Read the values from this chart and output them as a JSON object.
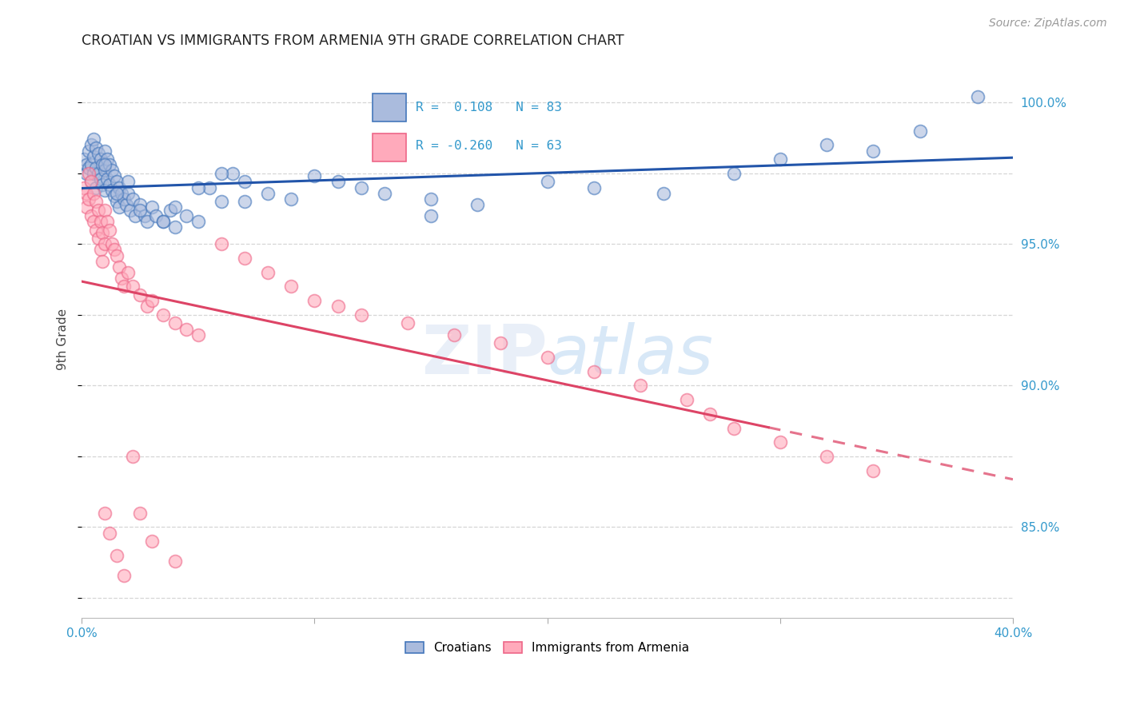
{
  "title": "CROATIAN VS IMMIGRANTS FROM ARMENIA 9TH GRADE CORRELATION CHART",
  "source": "Source: ZipAtlas.com",
  "ylabel": "9th Grade",
  "yticks": [
    "85.0%",
    "90.0%",
    "95.0%",
    "100.0%"
  ],
  "ytick_values": [
    0.85,
    0.9,
    0.95,
    1.0
  ],
  "xlim": [
    0.0,
    0.4
  ],
  "ylim": [
    0.818,
    1.015
  ],
  "blue_color": "#aabbdd",
  "pink_color": "#ffaabb",
  "blue_edge_color": "#4477bb",
  "pink_edge_color": "#ee6688",
  "blue_line_color": "#2255aa",
  "pink_line_color": "#dd4466",
  "watermark": "ZIPatlas",
  "legend_r1": "R =  0.108   N = 83",
  "legend_r2": "R = -0.260   N = 63",
  "blue_x": [
    0.001,
    0.002,
    0.002,
    0.003,
    0.003,
    0.004,
    0.004,
    0.004,
    0.005,
    0.005,
    0.005,
    0.006,
    0.006,
    0.006,
    0.007,
    0.007,
    0.008,
    0.008,
    0.009,
    0.009,
    0.01,
    0.01,
    0.01,
    0.011,
    0.011,
    0.012,
    0.012,
    0.013,
    0.013,
    0.014,
    0.014,
    0.015,
    0.015,
    0.016,
    0.016,
    0.017,
    0.018,
    0.019,
    0.02,
    0.021,
    0.022,
    0.023,
    0.025,
    0.027,
    0.028,
    0.03,
    0.032,
    0.035,
    0.038,
    0.04,
    0.045,
    0.05,
    0.055,
    0.06,
    0.065,
    0.07,
    0.08,
    0.09,
    0.1,
    0.11,
    0.12,
    0.13,
    0.15,
    0.17,
    0.2,
    0.22,
    0.25,
    0.28,
    0.3,
    0.32,
    0.34,
    0.36,
    0.385,
    0.15,
    0.07,
    0.06,
    0.05,
    0.04,
    0.035,
    0.025,
    0.02,
    0.015,
    0.01
  ],
  "blue_y": [
    0.98,
    0.978,
    0.975,
    0.983,
    0.977,
    0.985,
    0.978,
    0.972,
    0.987,
    0.981,
    0.975,
    0.984,
    0.977,
    0.97,
    0.982,
    0.975,
    0.98,
    0.973,
    0.978,
    0.971,
    0.983,
    0.976,
    0.969,
    0.98,
    0.973,
    0.978,
    0.971,
    0.976,
    0.969,
    0.974,
    0.967,
    0.972,
    0.965,
    0.97,
    0.963,
    0.968,
    0.966,
    0.964,
    0.968,
    0.962,
    0.966,
    0.96,
    0.964,
    0.96,
    0.958,
    0.963,
    0.96,
    0.958,
    0.962,
    0.956,
    0.96,
    0.958,
    0.97,
    0.965,
    0.975,
    0.972,
    0.968,
    0.966,
    0.974,
    0.972,
    0.97,
    0.968,
    0.966,
    0.964,
    0.972,
    0.97,
    0.968,
    0.975,
    0.98,
    0.985,
    0.983,
    0.99,
    1.002,
    0.96,
    0.965,
    0.975,
    0.97,
    0.963,
    0.958,
    0.962,
    0.972,
    0.968,
    0.978
  ],
  "pink_x": [
    0.001,
    0.002,
    0.002,
    0.003,
    0.003,
    0.004,
    0.004,
    0.005,
    0.005,
    0.006,
    0.006,
    0.007,
    0.007,
    0.008,
    0.008,
    0.009,
    0.009,
    0.01,
    0.01,
    0.011,
    0.012,
    0.013,
    0.014,
    0.015,
    0.016,
    0.017,
    0.018,
    0.02,
    0.022,
    0.025,
    0.028,
    0.03,
    0.035,
    0.04,
    0.045,
    0.05,
    0.06,
    0.07,
    0.08,
    0.09,
    0.1,
    0.11,
    0.12,
    0.14,
    0.16,
    0.18,
    0.2,
    0.22,
    0.24,
    0.26,
    0.27,
    0.28,
    0.3,
    0.32,
    0.34,
    0.01,
    0.012,
    0.015,
    0.018,
    0.022,
    0.025,
    0.03,
    0.04
  ],
  "pink_y": [
    0.97,
    0.968,
    0.963,
    0.975,
    0.966,
    0.972,
    0.96,
    0.968,
    0.958,
    0.965,
    0.955,
    0.962,
    0.952,
    0.958,
    0.948,
    0.954,
    0.944,
    0.962,
    0.95,
    0.958,
    0.955,
    0.95,
    0.948,
    0.946,
    0.942,
    0.938,
    0.935,
    0.94,
    0.935,
    0.932,
    0.928,
    0.93,
    0.925,
    0.922,
    0.92,
    0.918,
    0.95,
    0.945,
    0.94,
    0.935,
    0.93,
    0.928,
    0.925,
    0.922,
    0.918,
    0.915,
    0.91,
    0.905,
    0.9,
    0.895,
    0.89,
    0.885,
    0.88,
    0.875,
    0.87,
    0.855,
    0.848,
    0.84,
    0.833,
    0.875,
    0.855,
    0.845,
    0.838
  ]
}
